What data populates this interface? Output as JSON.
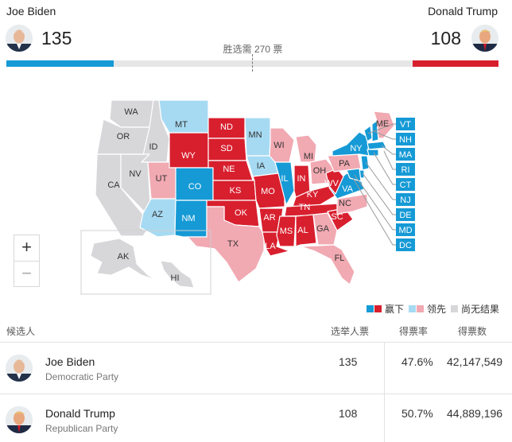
{
  "header": {
    "biden_name": "Joe Biden",
    "trump_name": "Donald Trump",
    "biden_votes": "135",
    "trump_votes": "108",
    "needed_label": "胜选需 270 票",
    "biden_share": 0.2177,
    "trump_share": 0.1742
  },
  "colors": {
    "dem_won": "#159ad6",
    "dem_lead": "#a6daf2",
    "rep_won": "#d81f2e",
    "rep_lead": "#f1a9b2",
    "no_result": "#d7d7da"
  },
  "map": {
    "zoom_in": "+",
    "zoom_out": "−",
    "states": [
      "WA",
      "OR",
      "CA",
      "ID",
      "NV",
      "MT",
      "WY",
      "UT",
      "AZ",
      "CO",
      "NM",
      "ND",
      "SD",
      "NE",
      "KS",
      "OK",
      "TX",
      "MN",
      "IA",
      "MO",
      "AR",
      "LA",
      "WI",
      "IL",
      "MI",
      "IN",
      "OH",
      "KY",
      "TN",
      "MS",
      "AL",
      "GA",
      "FL",
      "SC",
      "NC",
      "VA",
      "WV",
      "PA",
      "NY",
      "ME",
      "AK",
      "HI"
    ],
    "east_boxes": [
      "VT",
      "NH",
      "MA",
      "RI",
      "CT",
      "NJ",
      "DE",
      "MD",
      "DC"
    ]
  },
  "legend": {
    "won": "赢下",
    "lead": "领先",
    "no_result": "尚无结果"
  },
  "table": {
    "headers": {
      "candidate": "候选人",
      "electoral": "选举人票",
      "pct": "得票率",
      "votes": "得票数"
    },
    "rows": [
      {
        "name": "Joe Biden",
        "party": "Democratic Party",
        "electoral": "135",
        "pct": "47.6%",
        "votes": "42,147,549"
      },
      {
        "name": "Donald Trump",
        "party": "Republican Party",
        "electoral": "108",
        "pct": "50.7%",
        "votes": "44,889,196"
      }
    ]
  }
}
